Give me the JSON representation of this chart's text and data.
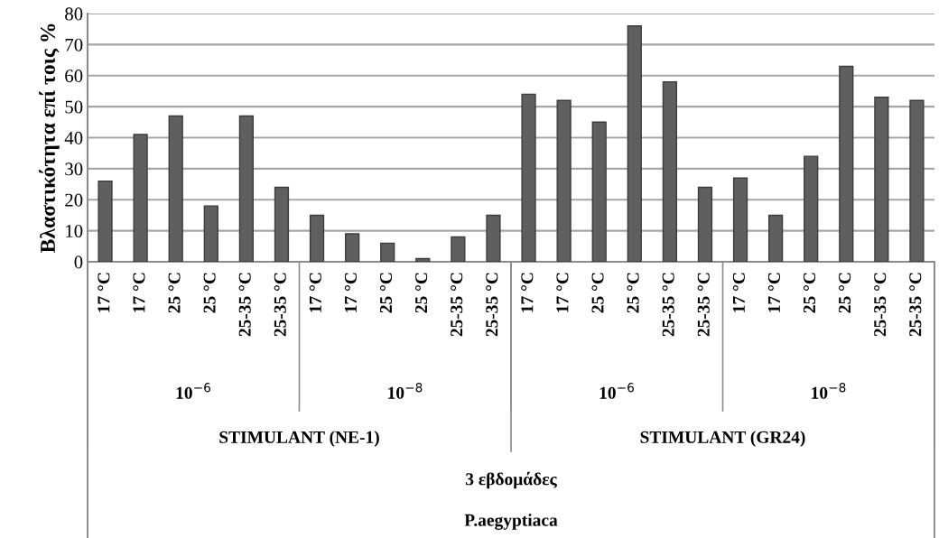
{
  "chart_data": {
    "type": "bar",
    "ylabel": "Βλαστικότητα επί τοις %",
    "categories": [
      "17 °C",
      "17 °C",
      "25 °C",
      "25 °C",
      "25-35 °C",
      "25-35 °C",
      "17 °C",
      "17 °C",
      "25 °C",
      "25 °C",
      "25-35 °C",
      "25-35 °C",
      "17 °C",
      "17 °C",
      "25 °C",
      "25 °C",
      "25-35 °C",
      "25-35 °C",
      "17 °C",
      "17 °C",
      "25 °C",
      "25 °C",
      "25-35 °C",
      "25-35 °C"
    ],
    "values": [
      26,
      41,
      47,
      18,
      47,
      24,
      15,
      9,
      6,
      1,
      8,
      15,
      54,
      52,
      45,
      76,
      58,
      24,
      27,
      15,
      34,
      63,
      53,
      52
    ],
    "color": "#5f5f5f",
    "ylim": [
      0,
      80
    ],
    "yticks": [
      0,
      10,
      20,
      30,
      40,
      50,
      60,
      70,
      80
    ],
    "grid": "y",
    "annotations": [
      "10$^{−6}$",
      "10$^{−8}$",
      "10$^{−6}$",
      "10$^{−8}$",
      "STIMULANT (NE-1)",
      "STIMULANT (GR24)",
      "3 εβδομάδες",
      "P.aegyptiaca"
    ]
  }
}
